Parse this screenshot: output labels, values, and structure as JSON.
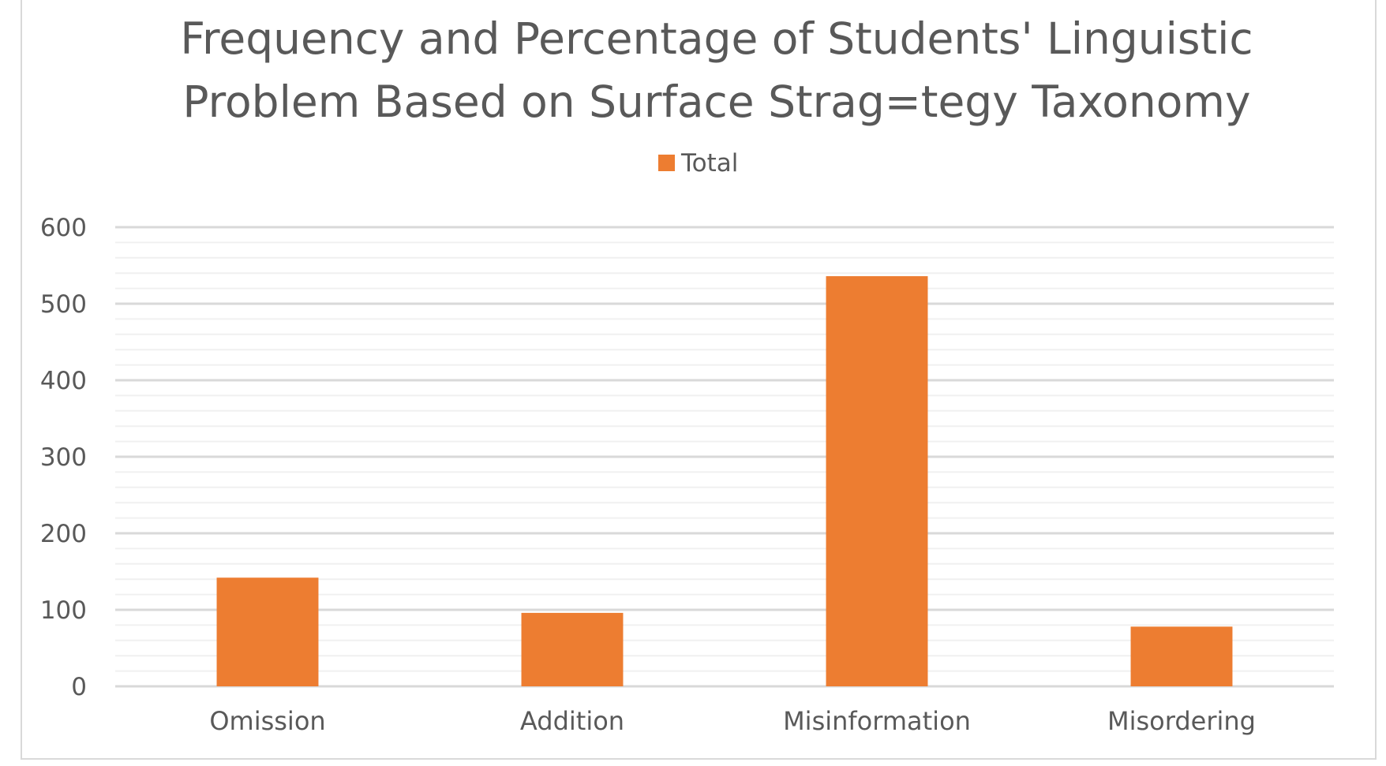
{
  "chart_data": {
    "type": "bar",
    "title_lines": [
      "Frequency and Percentage of Students' Linguistic",
      "Problem Based on Surface Strag=tegy Taxonomy"
    ],
    "categories": [
      "Omission",
      "Addition",
      "Misinformation",
      "Misordering"
    ],
    "series": [
      {
        "name": "Total",
        "values": [
          142,
          96,
          536,
          78
        ],
        "color": "#ED7D31"
      }
    ],
    "ylim": [
      0,
      600
    ],
    "yticks": [
      0,
      100,
      200,
      300,
      400,
      500,
      600
    ],
    "minor_ticks_per_major": 5,
    "grid": true,
    "legend_position": "top-center",
    "xlabel": "",
    "ylabel": ""
  }
}
